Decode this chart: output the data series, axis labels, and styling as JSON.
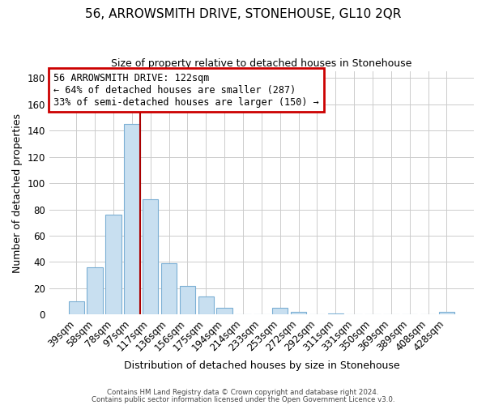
{
  "title": "56, ARROWSMITH DRIVE, STONEHOUSE, GL10 2QR",
  "subtitle": "Size of property relative to detached houses in Stonehouse",
  "xlabel": "Distribution of detached houses by size in Stonehouse",
  "ylabel": "Number of detached properties",
  "bar_labels": [
    "39sqm",
    "58sqm",
    "78sqm",
    "97sqm",
    "117sqm",
    "136sqm",
    "156sqm",
    "175sqm",
    "194sqm",
    "214sqm",
    "233sqm",
    "253sqm",
    "272sqm",
    "292sqm",
    "311sqm",
    "331sqm",
    "350sqm",
    "369sqm",
    "389sqm",
    "408sqm",
    "428sqm"
  ],
  "bar_values": [
    10,
    36,
    76,
    145,
    88,
    39,
    22,
    14,
    5,
    0,
    0,
    5,
    2,
    0,
    1,
    0,
    0,
    0,
    0,
    0,
    2
  ],
  "bar_color": "#c8dff0",
  "bar_edge_color": "#7bafd4",
  "redline_after_index": 3,
  "ylim": [
    0,
    185
  ],
  "yticks": [
    0,
    20,
    40,
    60,
    80,
    100,
    120,
    140,
    160,
    180
  ],
  "annotation_title": "56 ARROWSMITH DRIVE: 122sqm",
  "annotation_line1": "← 64% of detached houses are smaller (287)",
  "annotation_line2": "33% of semi-detached houses are larger (150) →",
  "annotation_box_facecolor": "#ffffff",
  "annotation_box_edgecolor": "#cc0000",
  "footer_line1": "Contains HM Land Registry data © Crown copyright and database right 2024.",
  "footer_line2": "Contains public sector information licensed under the Open Government Licence v3.0.",
  "background_color": "#ffffff",
  "grid_color": "#cccccc",
  "title_fontsize": 11,
  "subtitle_fontsize": 9
}
